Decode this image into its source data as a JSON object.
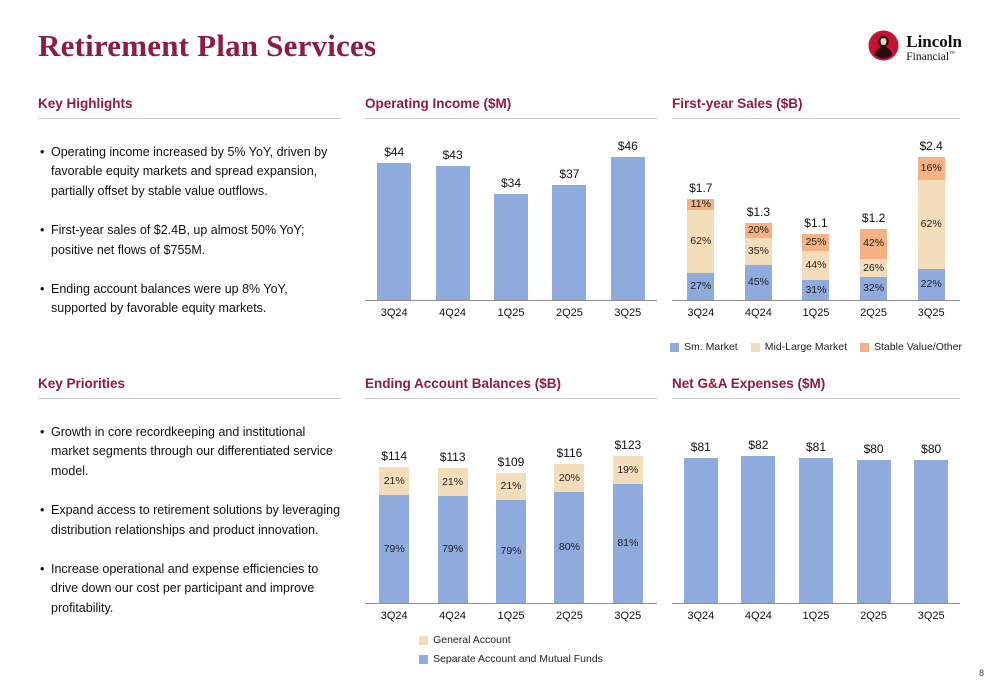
{
  "page": {
    "title": "Retirement Plan Services",
    "page_number": "8"
  },
  "logo": {
    "name": "Lincoln",
    "sub": "Financial",
    "tm": "™"
  },
  "colors": {
    "accent_maroon": "#8C1D40",
    "logo_red": "#C41230",
    "bar_blue": "#8FAADC",
    "bar_tan": "#F3DCB9",
    "bar_orange": "#F4B183"
  },
  "sections": {
    "key_highlights": {
      "title": "Key Highlights",
      "bullets": [
        "Operating income increased by 5% YoY, driven by favorable equity markets and spread expansion, partially offset by stable value outflows.",
        "First-year sales of $2.4B, up almost 50% YoY; positive net flows of $755M.",
        "Ending account balances were up 8% YoY, supported by favorable equity markets."
      ]
    },
    "key_priorities": {
      "title": "Key Priorities",
      "bullets": [
        "Growth in core recordkeeping and institutional market segments through our differentiated service model.",
        "Expand access to retirement solutions by leveraging distribution relationships and product innovation.",
        "Increase operational and expense efficiencies to drive down our cost per participant and improve profitability."
      ]
    }
  },
  "chart_data": [
    {
      "id": "operating_income",
      "type": "bar",
      "title": "Operating Income ($M)",
      "categories": [
        "3Q24",
        "4Q24",
        "1Q25",
        "2Q25",
        "3Q25"
      ],
      "values": [
        44,
        43,
        34,
        37,
        46
      ],
      "value_labels": [
        "$44",
        "$43",
        "$34",
        "$37",
        "$46"
      ],
      "bar_color": "#8FAADC"
    },
    {
      "id": "first_year_sales",
      "type": "stacked-bar",
      "title": "First-year Sales ($B)",
      "categories": [
        "3Q24",
        "4Q24",
        "1Q25",
        "2Q25",
        "3Q25"
      ],
      "totals": [
        1.7,
        1.3,
        1.1,
        1.2,
        2.4
      ],
      "total_labels": [
        "$1.7",
        "$1.3",
        "$1.1",
        "$1.2",
        "$2.4"
      ],
      "series": [
        {
          "name": "Sm. Market",
          "color": "#8FAADC",
          "pct": [
            27,
            45,
            31,
            32,
            22
          ]
        },
        {
          "name": "Mid-Large Market",
          "color": "#F3DCB9",
          "pct": [
            62,
            35,
            44,
            26,
            62
          ]
        },
        {
          "name": "Stable Value/Other",
          "color": "#F4B183",
          "pct": [
            11,
            20,
            25,
            42,
            16
          ]
        }
      ],
      "legend": [
        {
          "label": "Sm. Market",
          "color": "#8FAADC"
        },
        {
          "label": "Mid-Large Market",
          "color": "#F3DCB9"
        },
        {
          "label": "Stable Value/Other",
          "color": "#F4B183"
        }
      ],
      "legend_position": "bottom"
    },
    {
      "id": "ending_account_balances",
      "type": "stacked-bar",
      "title": "Ending Account Balances ($B)",
      "categories": [
        "3Q24",
        "4Q24",
        "1Q25",
        "2Q25",
        "3Q25"
      ],
      "totals": [
        114,
        113,
        109,
        116,
        123
      ],
      "total_labels": [
        "$114",
        "$113",
        "$109",
        "$116",
        "$123"
      ],
      "series": [
        {
          "name": "Separate Account and Mutual Funds",
          "color": "#8FAADC",
          "pct": [
            79,
            79,
            79,
            80,
            81
          ]
        },
        {
          "name": "General Account",
          "color": "#F3DCB9",
          "pct": [
            21,
            21,
            21,
            20,
            19
          ]
        }
      ],
      "legend": [
        {
          "label": "General Account",
          "color": "#F3DCB9"
        },
        {
          "label": "Separate Account and Mutual Funds",
          "color": "#8FAADC"
        }
      ],
      "legend_position": "bottom"
    },
    {
      "id": "net_ga_expenses",
      "type": "bar",
      "title": "Net G&A Expenses ($M)",
      "categories": [
        "3Q24",
        "4Q24",
        "1Q25",
        "2Q25",
        "3Q25"
      ],
      "values": [
        81,
        82,
        81,
        80,
        80
      ],
      "value_labels": [
        "$81",
        "$82",
        "$81",
        "$80",
        "$80"
      ],
      "bar_color": "#8FAADC"
    }
  ]
}
